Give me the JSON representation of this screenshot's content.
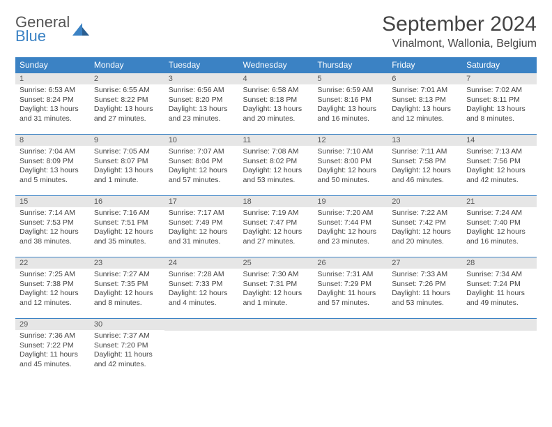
{
  "logo": {
    "line1": "General",
    "line2": "Blue"
  },
  "title": "September 2024",
  "location": "Vinalmont, Wallonia, Belgium",
  "colors": {
    "header_bg": "#3b82c4",
    "header_text": "#ffffff",
    "daynum_bg": "#e6e6e6",
    "body_text": "#444444",
    "page_bg": "#ffffff",
    "row_divider": "#3b82c4"
  },
  "columns": [
    "Sunday",
    "Monday",
    "Tuesday",
    "Wednesday",
    "Thursday",
    "Friday",
    "Saturday"
  ],
  "days": [
    {
      "n": 1,
      "sunrise": "6:53 AM",
      "sunset": "8:24 PM",
      "daylight": "13 hours and 31 minutes."
    },
    {
      "n": 2,
      "sunrise": "6:55 AM",
      "sunset": "8:22 PM",
      "daylight": "13 hours and 27 minutes."
    },
    {
      "n": 3,
      "sunrise": "6:56 AM",
      "sunset": "8:20 PM",
      "daylight": "13 hours and 23 minutes."
    },
    {
      "n": 4,
      "sunrise": "6:58 AM",
      "sunset": "8:18 PM",
      "daylight": "13 hours and 20 minutes."
    },
    {
      "n": 5,
      "sunrise": "6:59 AM",
      "sunset": "8:16 PM",
      "daylight": "13 hours and 16 minutes."
    },
    {
      "n": 6,
      "sunrise": "7:01 AM",
      "sunset": "8:13 PM",
      "daylight": "13 hours and 12 minutes."
    },
    {
      "n": 7,
      "sunrise": "7:02 AM",
      "sunset": "8:11 PM",
      "daylight": "13 hours and 8 minutes."
    },
    {
      "n": 8,
      "sunrise": "7:04 AM",
      "sunset": "8:09 PM",
      "daylight": "13 hours and 5 minutes."
    },
    {
      "n": 9,
      "sunrise": "7:05 AM",
      "sunset": "8:07 PM",
      "daylight": "13 hours and 1 minute."
    },
    {
      "n": 10,
      "sunrise": "7:07 AM",
      "sunset": "8:04 PM",
      "daylight": "12 hours and 57 minutes."
    },
    {
      "n": 11,
      "sunrise": "7:08 AM",
      "sunset": "8:02 PM",
      "daylight": "12 hours and 53 minutes."
    },
    {
      "n": 12,
      "sunrise": "7:10 AM",
      "sunset": "8:00 PM",
      "daylight": "12 hours and 50 minutes."
    },
    {
      "n": 13,
      "sunrise": "7:11 AM",
      "sunset": "7:58 PM",
      "daylight": "12 hours and 46 minutes."
    },
    {
      "n": 14,
      "sunrise": "7:13 AM",
      "sunset": "7:56 PM",
      "daylight": "12 hours and 42 minutes."
    },
    {
      "n": 15,
      "sunrise": "7:14 AM",
      "sunset": "7:53 PM",
      "daylight": "12 hours and 38 minutes."
    },
    {
      "n": 16,
      "sunrise": "7:16 AM",
      "sunset": "7:51 PM",
      "daylight": "12 hours and 35 minutes."
    },
    {
      "n": 17,
      "sunrise": "7:17 AM",
      "sunset": "7:49 PM",
      "daylight": "12 hours and 31 minutes."
    },
    {
      "n": 18,
      "sunrise": "7:19 AM",
      "sunset": "7:47 PM",
      "daylight": "12 hours and 27 minutes."
    },
    {
      "n": 19,
      "sunrise": "7:20 AM",
      "sunset": "7:44 PM",
      "daylight": "12 hours and 23 minutes."
    },
    {
      "n": 20,
      "sunrise": "7:22 AM",
      "sunset": "7:42 PM",
      "daylight": "12 hours and 20 minutes."
    },
    {
      "n": 21,
      "sunrise": "7:24 AM",
      "sunset": "7:40 PM",
      "daylight": "12 hours and 16 minutes."
    },
    {
      "n": 22,
      "sunrise": "7:25 AM",
      "sunset": "7:38 PM",
      "daylight": "12 hours and 12 minutes."
    },
    {
      "n": 23,
      "sunrise": "7:27 AM",
      "sunset": "7:35 PM",
      "daylight": "12 hours and 8 minutes."
    },
    {
      "n": 24,
      "sunrise": "7:28 AM",
      "sunset": "7:33 PM",
      "daylight": "12 hours and 4 minutes."
    },
    {
      "n": 25,
      "sunrise": "7:30 AM",
      "sunset": "7:31 PM",
      "daylight": "12 hours and 1 minute."
    },
    {
      "n": 26,
      "sunrise": "7:31 AM",
      "sunset": "7:29 PM",
      "daylight": "11 hours and 57 minutes."
    },
    {
      "n": 27,
      "sunrise": "7:33 AM",
      "sunset": "7:26 PM",
      "daylight": "11 hours and 53 minutes."
    },
    {
      "n": 28,
      "sunrise": "7:34 AM",
      "sunset": "7:24 PM",
      "daylight": "11 hours and 49 minutes."
    },
    {
      "n": 29,
      "sunrise": "7:36 AM",
      "sunset": "7:22 PM",
      "daylight": "11 hours and 45 minutes."
    },
    {
      "n": 30,
      "sunrise": "7:37 AM",
      "sunset": "7:20 PM",
      "daylight": "11 hours and 42 minutes."
    }
  ],
  "labels": {
    "sunrise": "Sunrise:",
    "sunset": "Sunset:",
    "daylight": "Daylight:"
  },
  "layout": {
    "start_weekday": 0,
    "rows": 5,
    "cols": 7
  }
}
